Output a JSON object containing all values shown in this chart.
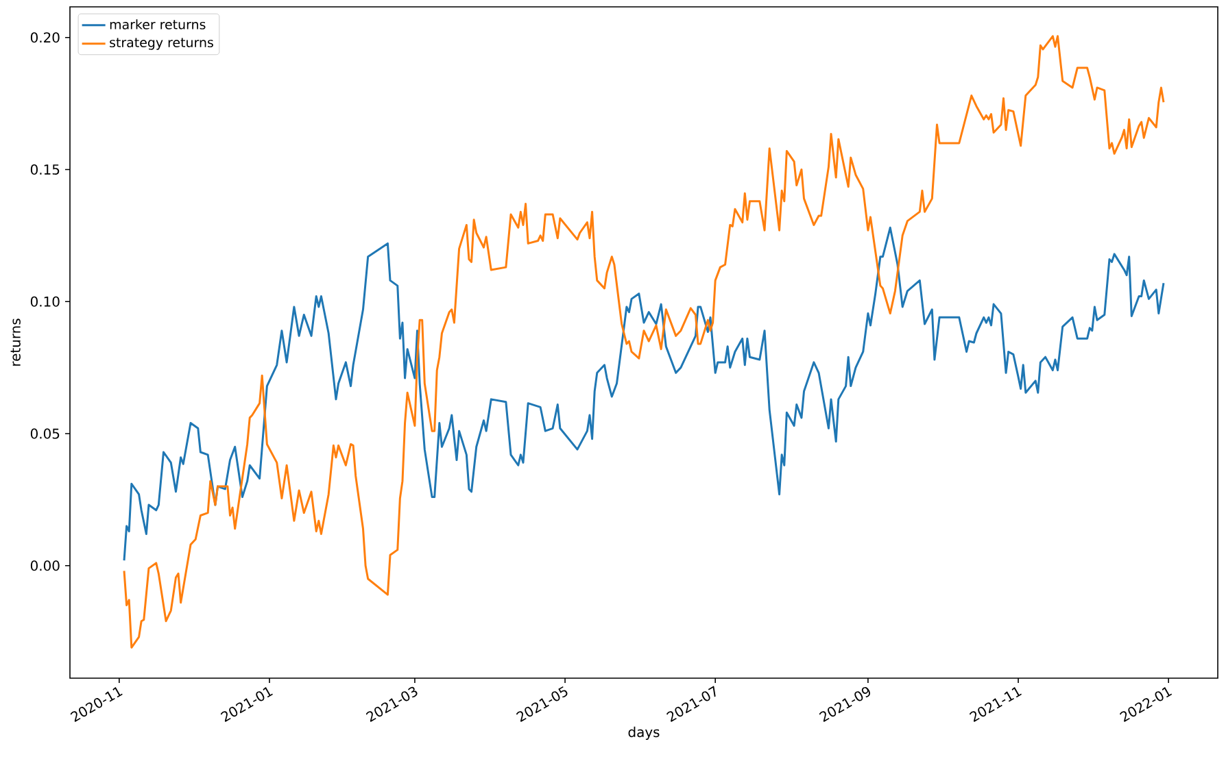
{
  "chart_data": {
    "type": "line",
    "xlabel": "days",
    "ylabel": "returns",
    "legend": "top left",
    "xlim": [
      "2020-10-12",
      "2022-01-21"
    ],
    "ylim": [
      -0.0426,
      0.2116
    ],
    "xticks": [
      "2020-11",
      "2021-01",
      "2021-03",
      "2021-05",
      "2021-07",
      "2021-09",
      "2021-11",
      "2022-01"
    ],
    "yticks": [
      {
        "value": 0,
        "label": "0.00"
      },
      {
        "value": 0.05,
        "label": "0.05"
      },
      {
        "value": 0.1,
        "label": "0.10"
      },
      {
        "value": 0.15,
        "label": "0.15"
      },
      {
        "value": 0.2,
        "label": "0.20"
      }
    ],
    "series": [
      {
        "name": "marker returns",
        "color": "#1f77b4",
        "x": [
          "2020-11-03",
          "2020-11-04",
          "2020-11-05",
          "2020-11-06",
          "2020-11-09",
          "2020-11-10",
          "2020-11-12",
          "2020-11-13",
          "2020-11-16",
          "2020-11-17",
          "2020-11-19",
          "2020-11-22",
          "2020-11-24",
          "2020-11-26",
          "2020-11-27",
          "2020-11-30",
          "2020-12-03",
          "2020-12-04",
          "2020-12-07",
          "2020-12-10",
          "2020-12-11",
          "2020-12-14",
          "2020-12-16",
          "2020-12-18",
          "2020-12-21",
          "2020-12-23",
          "2020-12-24",
          "2020-12-28",
          "2020-12-31",
          "2021-01-04",
          "2021-01-06",
          "2021-01-08",
          "2021-01-11",
          "2021-01-13",
          "2021-01-15",
          "2021-01-18",
          "2021-01-20",
          "2021-01-21",
          "2021-01-22",
          "2021-01-25",
          "2021-01-28",
          "2021-01-29",
          "2021-02-01",
          "2021-02-03",
          "2021-02-04",
          "2021-02-08",
          "2021-02-10",
          "2021-02-18",
          "2021-02-19",
          "2021-02-22",
          "2021-02-23",
          "2021-02-24",
          "2021-02-25",
          "2021-02-26",
          "2021-03-01",
          "2021-03-02",
          "2021-03-03",
          "2021-03-05",
          "2021-03-08",
          "2021-03-09",
          "2021-03-11",
          "2021-03-12",
          "2021-03-15",
          "2021-03-16",
          "2021-03-18",
          "2021-03-19",
          "2021-03-22",
          "2021-03-23",
          "2021-03-24",
          "2021-03-26",
          "2021-03-29",
          "2021-03-30",
          "2021-04-01",
          "2021-04-07",
          "2021-04-09",
          "2021-04-12",
          "2021-04-13",
          "2021-04-14",
          "2021-04-16",
          "2021-04-21",
          "2021-04-23",
          "2021-04-26",
          "2021-04-28",
          "2021-04-29",
          "2021-05-06",
          "2021-05-10",
          "2021-05-11",
          "2021-05-12",
          "2021-05-13",
          "2021-05-14",
          "2021-05-17",
          "2021-05-18",
          "2021-05-20",
          "2021-05-22",
          "2021-05-26",
          "2021-05-27",
          "2021-05-28",
          "2021-05-31",
          "2021-06-02",
          "2021-06-04",
          "2021-06-07",
          "2021-06-09",
          "2021-06-11",
          "2021-06-15",
          "2021-06-17",
          "2021-06-23",
          "2021-06-24",
          "2021-06-25",
          "2021-06-28",
          "2021-06-29",
          "2021-07-01",
          "2021-07-02",
          "2021-07-05",
          "2021-07-06",
          "2021-07-07",
          "2021-07-09",
          "2021-07-12",
          "2021-07-13",
          "2021-07-14",
          "2021-07-15",
          "2021-07-19",
          "2021-07-21",
          "2021-07-23",
          "2021-07-27",
          "2021-07-28",
          "2021-07-29",
          "2021-07-30",
          "2021-08-02",
          "2021-08-03",
          "2021-08-05",
          "2021-08-06",
          "2021-08-10",
          "2021-08-12",
          "2021-08-16",
          "2021-08-17",
          "2021-08-19",
          "2021-08-20",
          "2021-08-23",
          "2021-08-24",
          "2021-08-25",
          "2021-08-27",
          "2021-08-30",
          "2021-09-01",
          "2021-09-02",
          "2021-09-04",
          "2021-09-06",
          "2021-09-07",
          "2021-09-10",
          "2021-09-13",
          "2021-09-15",
          "2021-09-17",
          "2021-09-22",
          "2021-09-24",
          "2021-09-27",
          "2021-09-28",
          "2021-09-30",
          "2021-10-08",
          "2021-10-11",
          "2021-10-12",
          "2021-10-14",
          "2021-10-15",
          "2021-10-18",
          "2021-10-19",
          "2021-10-20",
          "2021-10-21",
          "2021-10-22",
          "2021-10-25",
          "2021-10-27",
          "2021-10-28",
          "2021-10-30",
          "2021-11-01",
          "2021-11-02",
          "2021-11-03",
          "2021-11-04",
          "2021-11-08",
          "2021-11-09",
          "2021-11-10",
          "2021-11-12",
          "2021-11-15",
          "2021-11-16",
          "2021-11-17",
          "2021-11-19",
          "2021-11-23",
          "2021-11-25",
          "2021-11-29",
          "2021-11-30",
          "2021-12-01",
          "2021-12-02",
          "2021-12-03",
          "2021-12-06",
          "2021-12-08",
          "2021-12-09",
          "2021-12-10",
          "2021-12-14",
          "2021-12-15",
          "2021-12-16",
          "2021-12-17",
          "2021-12-20",
          "2021-12-21",
          "2021-12-22",
          "2021-12-24",
          "2021-12-27",
          "2021-12-28",
          "2021-12-30"
        ],
        "values": [
          0.002,
          0.015,
          0.013,
          0.031,
          0.027,
          0.021,
          0.012,
          0.023,
          0.021,
          0.023,
          0.043,
          0.039,
          0.028,
          0.041,
          0.0385,
          0.054,
          0.052,
          0.043,
          0.042,
          0.023,
          0.03,
          0.029,
          0.04,
          0.045,
          0.026,
          0.032,
          0.038,
          0.033,
          0.068,
          0.076,
          0.089,
          0.077,
          0.098,
          0.087,
          0.095,
          0.087,
          0.102,
          0.098,
          0.102,
          0.088,
          0.063,
          0.069,
          0.077,
          0.068,
          0.076,
          0.097,
          0.117,
          0.122,
          0.108,
          0.106,
          0.086,
          0.092,
          0.071,
          0.082,
          0.071,
          0.089,
          0.069,
          0.044,
          0.026,
          0.026,
          0.054,
          0.045,
          0.052,
          0.057,
          0.04,
          0.051,
          0.042,
          0.029,
          0.028,
          0.045,
          0.055,
          0.051,
          0.063,
          0.062,
          0.042,
          0.038,
          0.042,
          0.039,
          0.0615,
          0.06,
          0.051,
          0.052,
          0.061,
          0.052,
          0.044,
          0.051,
          0.057,
          0.048,
          0.066,
          0.073,
          0.076,
          0.071,
          0.064,
          0.069,
          0.098,
          0.096,
          0.101,
          0.103,
          0.092,
          0.096,
          0.0915,
          0.099,
          0.083,
          0.073,
          0.075,
          0.087,
          0.098,
          0.098,
          0.0885,
          0.094,
          0.073,
          0.077,
          0.077,
          0.083,
          0.075,
          0.081,
          0.086,
          0.076,
          0.086,
          0.079,
          0.078,
          0.089,
          0.059,
          0.027,
          0.042,
          0.038,
          0.058,
          0.053,
          0.061,
          0.056,
          0.066,
          0.077,
          0.073,
          0.052,
          0.063,
          0.047,
          0.063,
          0.068,
          0.079,
          0.068,
          0.075,
          0.081,
          0.0955,
          0.091,
          0.103,
          0.117,
          0.117,
          0.128,
          0.114,
          0.098,
          0.104,
          0.108,
          0.0915,
          0.097,
          0.078,
          0.094,
          0.094,
          0.081,
          0.085,
          0.0845,
          0.088,
          0.094,
          0.092,
          0.094,
          0.091,
          0.099,
          0.0955,
          0.073,
          0.081,
          0.08,
          0.0715,
          0.067,
          0.076,
          0.0655,
          0.07,
          0.0655,
          0.077,
          0.079,
          0.074,
          0.078,
          0.074,
          0.0905,
          0.094,
          0.086,
          0.086,
          0.09,
          0.089,
          0.098,
          0.093,
          0.095,
          0.116,
          0.115,
          0.118,
          0.112,
          0.11,
          0.117,
          0.0945,
          0.102,
          0.102,
          0.108,
          0.101,
          0.1045,
          0.0955,
          0.107
        ]
      },
      {
        "name": "strategy returns",
        "color": "#ff7f0e",
        "x": [
          "2020-11-03",
          "2020-11-04",
          "2020-11-05",
          "2020-11-06",
          "2020-11-09",
          "2020-11-10",
          "2020-11-11",
          "2020-11-13",
          "2020-11-16",
          "2020-11-17",
          "2020-11-20",
          "2020-11-22",
          "2020-11-24",
          "2020-11-25",
          "2020-11-26",
          "2020-11-30",
          "2020-12-02",
          "2020-12-04",
          "2020-12-07",
          "2020-12-08",
          "2020-12-10",
          "2020-12-11",
          "2020-12-15",
          "2020-12-16",
          "2020-12-17",
          "2020-12-18",
          "2020-12-23",
          "2020-12-24",
          "2020-12-25",
          "2020-12-28",
          "2020-12-29",
          "2020-12-31",
          "2021-01-04",
          "2021-01-06",
          "2021-01-08",
          "2021-01-11",
          "2021-01-13",
          "2021-01-15",
          "2021-01-18",
          "2021-01-20",
          "2021-01-21",
          "2021-01-22",
          "2021-01-25",
          "2021-01-27",
          "2021-01-28",
          "2021-01-29",
          "2021-02-01",
          "2021-02-03",
          "2021-02-04",
          "2021-02-05",
          "2021-02-08",
          "2021-02-09",
          "2021-02-10",
          "2021-02-18",
          "2021-02-19",
          "2021-02-22",
          "2021-02-23",
          "2021-02-24",
          "2021-02-25",
          "2021-02-26",
          "2021-03-01",
          "2021-03-02",
          "2021-03-03",
          "2021-03-04",
          "2021-03-05",
          "2021-03-08",
          "2021-03-09",
          "2021-03-10",
          "2021-03-11",
          "2021-03-12",
          "2021-03-15",
          "2021-03-16",
          "2021-03-17",
          "2021-03-19",
          "2021-03-22",
          "2021-03-23",
          "2021-03-24",
          "2021-03-25",
          "2021-03-26",
          "2021-03-29",
          "2021-03-30",
          "2021-04-01",
          "2021-04-07",
          "2021-04-09",
          "2021-04-12",
          "2021-04-13",
          "2021-04-14",
          "2021-04-15",
          "2021-04-16",
          "2021-04-20",
          "2021-04-21",
          "2021-04-22",
          "2021-04-23",
          "2021-04-26",
          "2021-04-28",
          "2021-04-29",
          "2021-05-06",
          "2021-05-07",
          "2021-05-10",
          "2021-05-11",
          "2021-05-12",
          "2021-05-13",
          "2021-05-14",
          "2021-05-17",
          "2021-05-18",
          "2021-05-20",
          "2021-05-21",
          "2021-05-24",
          "2021-05-26",
          "2021-05-27",
          "2021-05-28",
          "2021-05-31",
          "2021-06-02",
          "2021-06-04",
          "2021-06-07",
          "2021-06-09",
          "2021-06-11",
          "2021-06-15",
          "2021-06-17",
          "2021-06-21",
          "2021-06-23",
          "2021-06-24",
          "2021-06-25",
          "2021-06-28",
          "2021-06-29",
          "2021-06-30",
          "2021-07-01",
          "2021-07-03",
          "2021-07-05",
          "2021-07-07",
          "2021-07-08",
          "2021-07-09",
          "2021-07-12",
          "2021-07-13",
          "2021-07-14",
          "2021-07-15",
          "2021-07-19",
          "2021-07-21",
          "2021-07-23",
          "2021-07-27",
          "2021-07-28",
          "2021-07-29",
          "2021-07-30",
          "2021-08-02",
          "2021-08-03",
          "2021-08-05",
          "2021-08-06",
          "2021-08-10",
          "2021-08-12",
          "2021-08-13",
          "2021-08-16",
          "2021-08-17",
          "2021-08-19",
          "2021-08-20",
          "2021-08-24",
          "2021-08-25",
          "2021-08-27",
          "2021-08-30",
          "2021-09-01",
          "2021-09-02",
          "2021-09-04",
          "2021-09-06",
          "2021-09-07",
          "2021-09-10",
          "2021-09-12",
          "2021-09-15",
          "2021-09-17",
          "2021-09-22",
          "2021-09-23",
          "2021-09-24",
          "2021-09-27",
          "2021-09-29",
          "2021-09-30",
          "2021-10-08",
          "2021-10-13",
          "2021-10-15",
          "2021-10-18",
          "2021-10-19",
          "2021-10-20",
          "2021-10-21",
          "2021-10-22",
          "2021-10-25",
          "2021-10-26",
          "2021-10-27",
          "2021-10-28",
          "2021-10-30",
          "2021-11-02",
          "2021-11-04",
          "2021-11-08",
          "2021-11-09",
          "2021-11-10",
          "2021-11-11",
          "2021-11-15",
          "2021-11-16",
          "2021-11-17",
          "2021-11-19",
          "2021-11-23",
          "2021-11-25",
          "2021-11-29",
          "2021-11-30",
          "2021-12-02",
          "2021-12-03",
          "2021-12-06",
          "2021-12-08",
          "2021-12-09",
          "2021-12-10",
          "2021-12-13",
          "2021-12-14",
          "2021-12-15",
          "2021-12-16",
          "2021-12-17",
          "2021-12-20",
          "2021-12-21",
          "2021-12-22",
          "2021-12-24",
          "2021-12-27",
          "2021-12-28",
          "2021-12-29",
          "2021-12-30"
        ],
        "values": [
          -0.002,
          -0.015,
          -0.013,
          -0.031,
          -0.027,
          -0.021,
          -0.0205,
          -0.001,
          0.001,
          -0.003,
          -0.021,
          -0.017,
          -0.0045,
          -0.003,
          -0.014,
          0.008,
          0.01,
          0.019,
          0.02,
          0.032,
          0.023,
          0.03,
          0.03,
          0.019,
          0.022,
          0.014,
          0.046,
          0.056,
          0.057,
          0.0615,
          0.072,
          0.046,
          0.039,
          0.0255,
          0.038,
          0.017,
          0.0285,
          0.02,
          0.028,
          0.013,
          0.017,
          0.012,
          0.027,
          0.0455,
          0.041,
          0.0455,
          0.038,
          0.046,
          0.0455,
          0.034,
          0.014,
          0.0,
          -0.005,
          -0.011,
          0.004,
          0.006,
          0.0255,
          0.032,
          0.054,
          0.0655,
          0.053,
          0.0785,
          0.093,
          0.093,
          0.069,
          0.051,
          0.051,
          0.074,
          0.079,
          0.088,
          0.096,
          0.097,
          0.092,
          0.12,
          0.129,
          0.116,
          0.115,
          0.131,
          0.126,
          0.1205,
          0.1245,
          0.112,
          0.113,
          0.133,
          0.128,
          0.134,
          0.129,
          0.137,
          0.122,
          0.123,
          0.125,
          0.123,
          0.133,
          0.133,
          0.124,
          0.1315,
          0.1235,
          0.126,
          0.13,
          0.124,
          0.134,
          0.117,
          0.108,
          0.105,
          0.111,
          0.117,
          0.114,
          0.0915,
          0.084,
          0.085,
          0.081,
          0.0785,
          0.089,
          0.085,
          0.091,
          0.082,
          0.097,
          0.087,
          0.089,
          0.0975,
          0.095,
          0.084,
          0.084,
          0.093,
          0.089,
          0.092,
          0.108,
          0.113,
          0.114,
          0.129,
          0.1285,
          0.135,
          0.13,
          0.141,
          0.131,
          0.138,
          0.138,
          0.127,
          0.158,
          0.127,
          0.142,
          0.138,
          0.157,
          0.153,
          0.144,
          0.15,
          0.139,
          0.129,
          0.1325,
          0.1325,
          0.151,
          0.1635,
          0.147,
          0.1615,
          0.1435,
          0.1545,
          0.148,
          0.1427,
          0.127,
          0.132,
          0.119,
          0.106,
          0.105,
          0.0955,
          0.104,
          0.125,
          0.1305,
          0.134,
          0.142,
          0.134,
          0.139,
          0.167,
          0.16,
          0.16,
          0.178,
          0.174,
          0.169,
          0.1705,
          0.169,
          0.171,
          0.164,
          0.167,
          0.177,
          0.165,
          0.1725,
          0.172,
          0.159,
          0.178,
          0.182,
          0.185,
          0.197,
          0.1955,
          0.2005,
          0.1965,
          0.2005,
          0.1835,
          0.181,
          0.1885,
          0.1885,
          0.185,
          0.1765,
          0.181,
          0.18,
          0.158,
          0.16,
          0.156,
          0.162,
          0.165,
          0.158,
          0.169,
          0.1585,
          0.1665,
          0.168,
          0.162,
          0.1695,
          0.166,
          0.1755,
          0.181,
          0.1755
        ]
      }
    ]
  }
}
